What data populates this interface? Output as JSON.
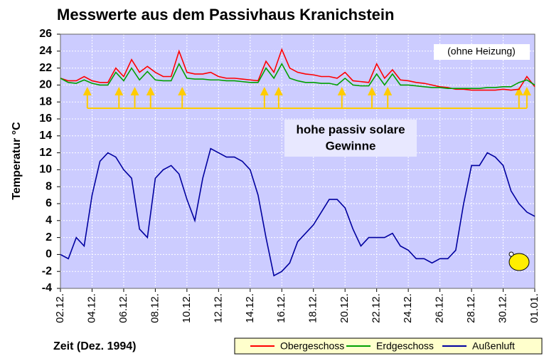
{
  "chart_data": {
    "type": "line",
    "title": "Messwerte aus dem Passivhaus Kranichstein",
    "x_label": "Zeit (Dez. 1994)",
    "y_label": "Temperatur °C",
    "annotations": [
      "(ohne Heizung)",
      "hohe passiv solare",
      "Gewinne"
    ],
    "arrows": {
      "x": [
        3.7,
        5.7,
        6.7,
        7.7,
        9.7,
        14.9,
        15.8,
        19.8,
        21.7,
        22.7,
        31.0,
        31.5
      ],
      "color": "#ffcc00"
    },
    "x": [
      2,
      2.5,
      3,
      3.5,
      4,
      4.5,
      5,
      5.5,
      6,
      6.5,
      7,
      7.5,
      8,
      8.5,
      9,
      9.5,
      10,
      10.5,
      11,
      11.5,
      12,
      12.5,
      13,
      13.5,
      14,
      14.5,
      15,
      15.5,
      16,
      16.5,
      17,
      17.5,
      18,
      18.5,
      19,
      19.5,
      20,
      20.5,
      21,
      21.5,
      22,
      22.5,
      23,
      23.5,
      24,
      24.5,
      25,
      25.5,
      26,
      26.5,
      27,
      27.5,
      28,
      28.5,
      29,
      29.5,
      30,
      30.5,
      31,
      31.5,
      32
    ],
    "series": [
      {
        "name": "Obergeschoss",
        "color": "#ff0000",
        "values": [
          20.8,
          20.5,
          20.5,
          21,
          20.5,
          20.3,
          20.3,
          22,
          21,
          23,
          21.5,
          22.2,
          21.5,
          21,
          21,
          24,
          21.5,
          21.3,
          21.3,
          21.5,
          21,
          20.8,
          20.8,
          20.7,
          20.6,
          20.5,
          22.8,
          21.5,
          24.2,
          22,
          21.5,
          21.3,
          21.2,
          21,
          21,
          20.8,
          21.5,
          20.5,
          20.4,
          20.3,
          22.5,
          20.8,
          21.8,
          20.6,
          20.5,
          20.3,
          20.2,
          20,
          19.8,
          19.7,
          19.5,
          19.5,
          19.4,
          19.4,
          19.4,
          19.4,
          19.5,
          19.4,
          19.5,
          21,
          19.8
        ]
      },
      {
        "name": "Erdgeschoss",
        "color": "#00a000",
        "values": [
          20.8,
          20.3,
          20.2,
          20.6,
          20.2,
          20,
          20,
          21.5,
          20.5,
          22,
          20.6,
          21.6,
          20.6,
          20.5,
          20.5,
          22.5,
          20.8,
          20.7,
          20.7,
          20.6,
          20.6,
          20.5,
          20.5,
          20.4,
          20.3,
          20.3,
          22,
          20.8,
          22.5,
          20.8,
          20.5,
          20.3,
          20.3,
          20.2,
          20.2,
          20,
          20.8,
          20,
          19.9,
          19.9,
          21.3,
          20,
          21.3,
          20,
          20,
          19.9,
          19.8,
          19.7,
          19.7,
          19.6,
          19.6,
          19.6,
          19.6,
          19.6,
          19.7,
          19.7,
          19.8,
          19.8,
          20.3,
          20.6,
          20
        ]
      },
      {
        "name": "Außenluft",
        "color": "#0000a0",
        "values": [
          0,
          -0.5,
          2,
          1,
          7,
          11,
          12,
          11.5,
          10,
          9,
          3,
          2,
          9,
          10,
          10.5,
          9.5,
          6.5,
          4,
          9,
          12.5,
          12,
          11.5,
          11.5,
          11,
          10,
          7,
          2,
          -2.5,
          -2,
          -1,
          1.5,
          2.5,
          3.5,
          5,
          6.5,
          6.5,
          5.5,
          3,
          1,
          2,
          2,
          2,
          2.5,
          1,
          0.5,
          -0.5,
          -0.5,
          -1,
          -0.5,
          -0.5,
          0.5,
          6,
          10.5,
          10.5,
          12,
          11.5,
          10.5,
          7.5,
          6,
          5,
          4.5
        ]
      }
    ],
    "xlim": [
      2,
      32
    ],
    "xticks": [
      {
        "value": 2,
        "label": "02.12."
      },
      {
        "value": 4,
        "label": "04.12."
      },
      {
        "value": 6,
        "label": "06.12."
      },
      {
        "value": 8,
        "label": "08.12."
      },
      {
        "value": 10,
        "label": "10.12."
      },
      {
        "value": 12,
        "label": "12.12."
      },
      {
        "value": 14,
        "label": "14.12."
      },
      {
        "value": 16,
        "label": "16.12."
      },
      {
        "value": 18,
        "label": "18.12."
      },
      {
        "value": 20,
        "label": "20.12."
      },
      {
        "value": 22,
        "label": "22.12."
      },
      {
        "value": 24,
        "label": "24.12."
      },
      {
        "value": 26,
        "label": "26.12."
      },
      {
        "value": 28,
        "label": "28.12."
      },
      {
        "value": 30,
        "label": "30.12."
      },
      {
        "value": 32,
        "label": "01.01."
      }
    ],
    "ylim": [
      -4,
      26
    ],
    "yticks": [
      -4,
      -2,
      0,
      2,
      4,
      6,
      8,
      10,
      12,
      14,
      16,
      18,
      20,
      22,
      24,
      26
    ],
    "grid": true,
    "legend": "bottom-right",
    "background": "#ccccff"
  }
}
